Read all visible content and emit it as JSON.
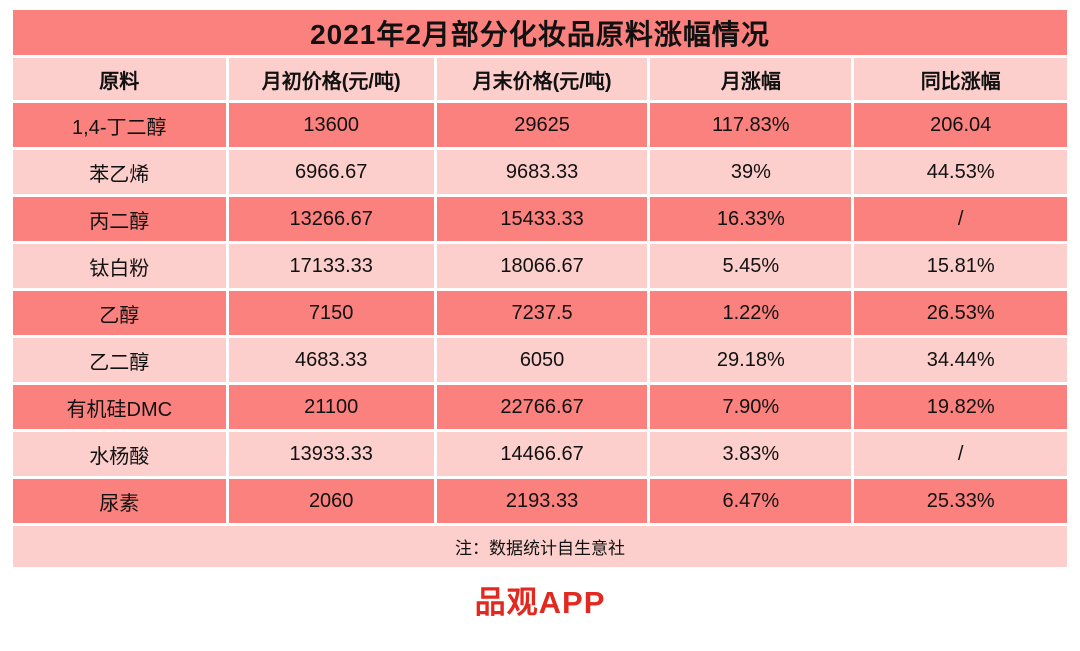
{
  "chart_data": {
    "type": "table",
    "title": "2021年2月部分化妆品原料涨幅情况",
    "columns": [
      "原料",
      "月初价格(元/吨)",
      "月末价格(元/吨)",
      "月涨幅",
      "同比涨幅"
    ],
    "rows": [
      [
        "1,4-丁二醇",
        "13600",
        "29625",
        "117.83%",
        "206.04"
      ],
      [
        "苯乙烯",
        "6966.67",
        "9683.33",
        "39%",
        "44.53%"
      ],
      [
        "丙二醇",
        "13266.67",
        "15433.33",
        "16.33%",
        "/"
      ],
      [
        "钛白粉",
        "17133.33",
        "18066.67",
        "5.45%",
        "15.81%"
      ],
      [
        "乙醇",
        "7150",
        "7237.5",
        "1.22%",
        "26.53%"
      ],
      [
        "乙二醇",
        "4683.33",
        "6050",
        "29.18%",
        "34.44%"
      ],
      [
        "有机硅DMC",
        "21100",
        "22766.67",
        "7.90%",
        "19.82%"
      ],
      [
        "水杨酸",
        "13933.33",
        "14466.67",
        "3.83%",
        "/"
      ],
      [
        "尿素",
        "2060",
        "2193.33",
        "6.47%",
        "25.33%"
      ]
    ],
    "note": "注：数据统计自生意社",
    "layout_hints": {
      "row_striping": "odd rows dark salmon, even rows light pink",
      "grid": "white 3px gaps between all cells"
    }
  },
  "footer": {
    "brand": "品观APP"
  },
  "colors": {
    "accent_dark": "#fa817e",
    "accent_light": "#fccfcc",
    "brand_red": "#e3291f",
    "text": "#111111",
    "background": "#ffffff"
  }
}
